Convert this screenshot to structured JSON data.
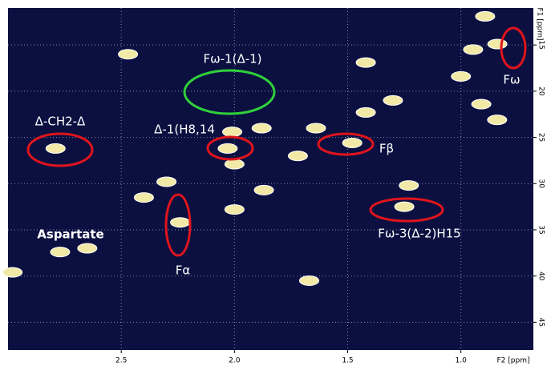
{
  "chart_data": {
    "type": "scatter",
    "x_label": "F2 [ppm]",
    "y_label": "F1 [ppm]",
    "xlim": [
      3.0,
      0.68
    ],
    "ylim": [
      11,
      48
    ],
    "xticks": [
      2.5,
      {
        "value": 2,
        "label": "2.0"
      },
      1.5,
      {
        "value": 1,
        "label": "1.0"
      }
    ],
    "yticks": [
      15,
      20,
      25,
      30,
      35,
      40,
      45
    ],
    "grid": true,
    "color": "#f2e9a6",
    "x": [
      0.893,
      0.839,
      0.946,
      1.0,
      0.91,
      0.84,
      1.42,
      1.3,
      1.42,
      1.64,
      1.72,
      1.48,
      2.01,
      2.03,
      2.0,
      1.87,
      1.88,
      2.79,
      2.3,
      2.4,
      2.24,
      2.0,
      1.23,
      1.25,
      1.67,
      2.98,
      2.47,
      2.77,
      2.65
    ],
    "y": [
      11.9,
      14.9,
      15.5,
      18.4,
      21.4,
      23.1,
      16.9,
      21.0,
      22.3,
      24.0,
      27.0,
      25.6,
      24.4,
      26.2,
      27.9,
      30.7,
      24.0,
      26.2,
      29.8,
      31.5,
      34.2,
      32.8,
      30.2,
      32.5,
      40.5,
      39.6,
      16.0,
      37.4,
      37.0
    ],
    "annotations": [
      "Fω-1(Δ-1)",
      "Δ-CH2-Δ",
      "Δ-1(H8,14",
      "Aspartate",
      "Fα",
      "Fβ",
      "Fω",
      "Fω-3(Δ-2)H15"
    ]
  }
}
